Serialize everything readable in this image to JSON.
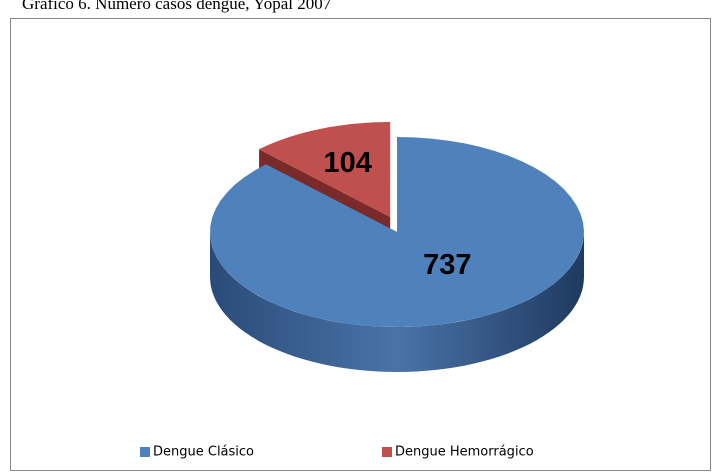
{
  "chart_data": {
    "type": "pie",
    "title": "Gráfico 6. Número casos dengue, Yopal 2007",
    "categories": [
      "Dengue Clásico",
      "Dengue Hemorrágico"
    ],
    "values": [
      737,
      104
    ],
    "colors": [
      "#4f81bd",
      "#c0504d"
    ],
    "side_colors": [
      "#2f5486",
      "#7a2a28"
    ],
    "legend": "bottom"
  }
}
